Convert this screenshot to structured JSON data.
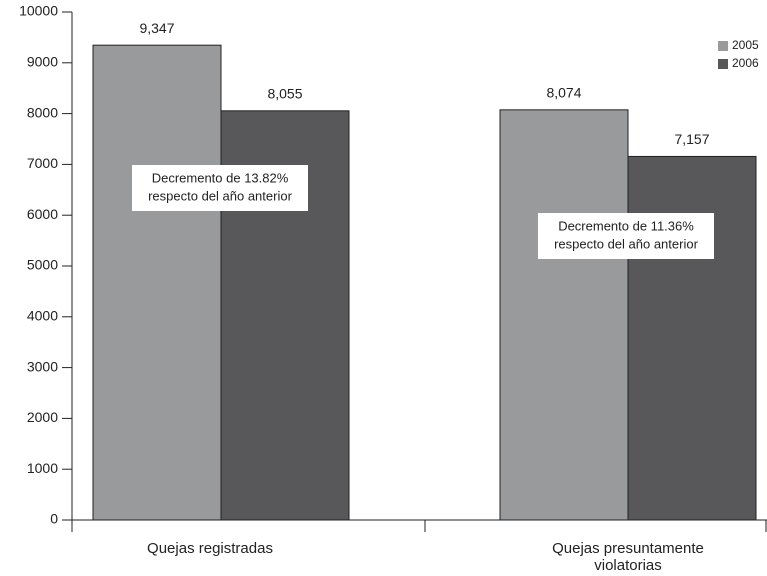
{
  "chart_data": {
    "type": "bar",
    "categories": [
      "Quejas registradas",
      "Quejas presuntamente violatorias"
    ],
    "series": [
      {
        "name": "2005",
        "color": "#999a9c",
        "values": [
          9347,
          8074
        ],
        "value_labels": [
          "9,347",
          "8,074"
        ]
      },
      {
        "name": "2006",
        "color": "#58585a",
        "values": [
          8055,
          7157
        ],
        "value_labels": [
          "8,055",
          "7,157"
        ]
      }
    ],
    "annotations": [
      [
        "Decremento de 13.82%",
        "respecto del año anterior"
      ],
      [
        "Decremento de 11.36%",
        "respecto del año anterior"
      ]
    ],
    "ylim": [
      0,
      10000
    ],
    "yticks": [
      0,
      1000,
      2000,
      3000,
      4000,
      5000,
      6000,
      7000,
      8000,
      9000,
      10000
    ],
    "grid": false,
    "legend": "top-right"
  }
}
